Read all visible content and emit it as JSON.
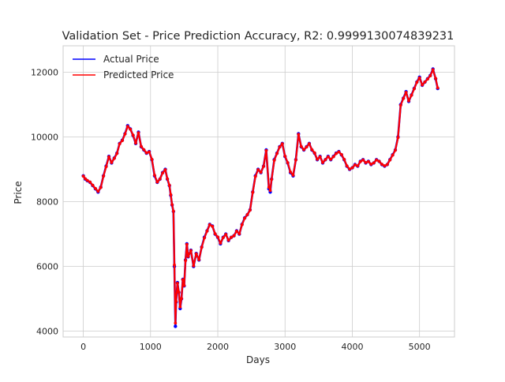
{
  "chart_data": {
    "type": "line",
    "title": "Validation Set - Price Prediction Accuracy, R2: 0.9999130074839231",
    "xlabel": "Days",
    "ylabel": "Price",
    "xlim": [
      -300,
      5520
    ],
    "ylim": [
      3820,
      12820
    ],
    "xticks": [
      0,
      1000,
      2000,
      3000,
      4000,
      5000
    ],
    "yticks": [
      4000,
      6000,
      8000,
      10000,
      12000
    ],
    "grid": true,
    "legend_position": "top-left",
    "series": [
      {
        "name": "Actual Price",
        "color": "#0000ff",
        "x": [
          0,
          30,
          60,
          100,
          140,
          180,
          220,
          260,
          300,
          340,
          380,
          420,
          460,
          500,
          540,
          580,
          620,
          660,
          700,
          740,
          780,
          820,
          860,
          900,
          940,
          980,
          1020,
          1060,
          1100,
          1140,
          1180,
          1220,
          1250,
          1280,
          1300,
          1320,
          1340,
          1355,
          1370,
          1380,
          1400,
          1420,
          1440,
          1460,
          1480,
          1500,
          1520,
          1540,
          1560,
          1600,
          1640,
          1680,
          1720,
          1760,
          1800,
          1840,
          1880,
          1920,
          1960,
          2000,
          2040,
          2080,
          2120,
          2160,
          2200,
          2240,
          2280,
          2320,
          2360,
          2400,
          2440,
          2480,
          2520,
          2560,
          2600,
          2640,
          2680,
          2720,
          2760,
          2780,
          2800,
          2840,
          2880,
          2920,
          2960,
          3000,
          3040,
          3080,
          3120,
          3160,
          3200,
          3240,
          3280,
          3320,
          3360,
          3400,
          3440,
          3480,
          3520,
          3560,
          3600,
          3640,
          3680,
          3720,
          3760,
          3800,
          3840,
          3880,
          3920,
          3960,
          4000,
          4040,
          4080,
          4120,
          4160,
          4200,
          4240,
          4280,
          4320,
          4360,
          4400,
          4440,
          4480,
          4520,
          4560,
          4600,
          4640,
          4680,
          4720,
          4760,
          4800,
          4840,
          4880,
          4920,
          4960,
          5000,
          5040,
          5080,
          5120,
          5160,
          5200,
          5240,
          5270
        ],
        "y": [
          8800,
          8700,
          8650,
          8600,
          8500,
          8400,
          8300,
          8450,
          8800,
          9100,
          9400,
          9200,
          9350,
          9500,
          9800,
          9900,
          10100,
          10350,
          10250,
          10050,
          9800,
          10150,
          9700,
          9600,
          9500,
          9550,
          9300,
          8800,
          8600,
          8700,
          8900,
          9000,
          8700,
          8500,
          8200,
          7900,
          7700,
          6000,
          4150,
          4900,
          5500,
          5200,
          4700,
          5000,
          5600,
          5400,
          6200,
          6700,
          6300,
          6500,
          6000,
          6400,
          6200,
          6600,
          6900,
          7100,
          7300,
          7250,
          7000,
          6900,
          6700,
          6900,
          7000,
          6800,
          6900,
          6950,
          7100,
          7000,
          7300,
          7500,
          7600,
          7750,
          8300,
          8800,
          9000,
          8900,
          9100,
          9600,
          8400,
          8300,
          8700,
          9300,
          9500,
          9700,
          9800,
          9400,
          9200,
          8900,
          8800,
          9300,
          10100,
          9700,
          9600,
          9700,
          9800,
          9600,
          9500,
          9300,
          9400,
          9200,
          9300,
          9400,
          9300,
          9400,
          9500,
          9550,
          9450,
          9300,
          9100,
          9000,
          9050,
          9150,
          9100,
          9250,
          9300,
          9200,
          9250,
          9150,
          9200,
          9300,
          9250,
          9150,
          9100,
          9150,
          9300,
          9450,
          9600,
          10000,
          11000,
          11200,
          11400,
          11100,
          11300,
          11500,
          11700,
          11850,
          11600,
          11700,
          11800,
          11900,
          12100,
          11800,
          11500
        ]
      },
      {
        "name": "Predicted Price",
        "color": "#ff0000",
        "x": [
          0,
          30,
          60,
          100,
          140,
          180,
          220,
          260,
          300,
          340,
          380,
          420,
          460,
          500,
          540,
          580,
          620,
          660,
          700,
          740,
          780,
          820,
          860,
          900,
          940,
          980,
          1020,
          1060,
          1100,
          1140,
          1180,
          1220,
          1250,
          1280,
          1300,
          1320,
          1340,
          1355,
          1370,
          1380,
          1400,
          1420,
          1440,
          1460,
          1480,
          1500,
          1520,
          1540,
          1560,
          1600,
          1640,
          1680,
          1720,
          1760,
          1800,
          1840,
          1880,
          1920,
          1960,
          2000,
          2040,
          2080,
          2120,
          2160,
          2200,
          2240,
          2280,
          2320,
          2360,
          2400,
          2440,
          2480,
          2520,
          2560,
          2600,
          2640,
          2680,
          2720,
          2760,
          2780,
          2800,
          2840,
          2880,
          2920,
          2960,
          3000,
          3040,
          3080,
          3120,
          3160,
          3200,
          3240,
          3280,
          3320,
          3360,
          3400,
          3440,
          3480,
          3520,
          3560,
          3600,
          3640,
          3680,
          3720,
          3760,
          3800,
          3840,
          3880,
          3920,
          3960,
          4000,
          4040,
          4080,
          4120,
          4160,
          4200,
          4240,
          4280,
          4320,
          4360,
          4400,
          4440,
          4480,
          4520,
          4560,
          4600,
          4640,
          4680,
          4720,
          4760,
          4800,
          4840,
          4880,
          4920,
          4960,
          5000,
          5040,
          5080,
          5120,
          5160,
          5200,
          5240,
          5270
        ],
        "y": [
          8790,
          8710,
          8660,
          8610,
          8510,
          8410,
          8320,
          8440,
          8790,
          9080,
          9390,
          9210,
          9340,
          9490,
          9790,
          9890,
          10090,
          10330,
          10240,
          10060,
          9810,
          10130,
          9710,
          9610,
          9510,
          9540,
          9310,
          8820,
          8610,
          8700,
          8890,
          8990,
          8710,
          8510,
          8220,
          7910,
          7710,
          6050,
          4250,
          4920,
          5480,
          5210,
          4750,
          5010,
          5590,
          5410,
          6180,
          6680,
          6310,
          6490,
          6020,
          6390,
          6210,
          6590,
          6880,
          7090,
          7290,
          7240,
          7010,
          6910,
          6720,
          6890,
          6990,
          6810,
          6900,
          6950,
          7090,
          7010,
          7290,
          7490,
          7600,
          7740,
          8290,
          8780,
          8990,
          8910,
          9090,
          9580,
          8450,
          8350,
          8690,
          9280,
          9490,
          9690,
          9790,
          9410,
          9210,
          8920,
          8820,
          9290,
          10080,
          9710,
          9610,
          9690,
          9790,
          9610,
          9510,
          9310,
          9390,
          9210,
          9300,
          9390,
          9310,
          9390,
          9490,
          9540,
          9460,
          9310,
          9110,
          9010,
          9050,
          9140,
          9110,
          9240,
          9290,
          9210,
          9240,
          9160,
          9200,
          9290,
          9250,
          9160,
          9110,
          9150,
          9290,
          9440,
          9590,
          9980,
          10980,
          11190,
          11380,
          11120,
          11290,
          11490,
          11690,
          11830,
          11610,
          11700,
          11790,
          11890,
          12080,
          11810,
          11520
        ]
      }
    ]
  }
}
